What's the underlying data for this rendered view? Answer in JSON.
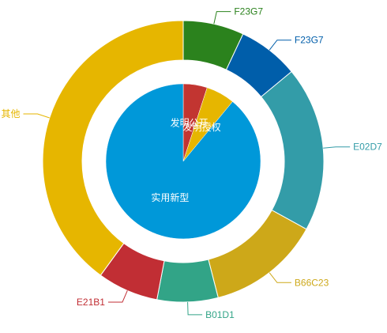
{
  "chart_data": {
    "type": "pie",
    "title": "",
    "inner_pie": {
      "slices": [
        {
          "label": "发明公开",
          "value": 5,
          "color": "#c23531"
        },
        {
          "label": "发明授权",
          "value": 6,
          "color": "#e6b600"
        },
        {
          "label": "实用新型",
          "value": 89,
          "color": "#0098d9"
        }
      ]
    },
    "outer_ring": {
      "slices": [
        {
          "label": "F23G7",
          "value": 7,
          "color": "#2b821d"
        },
        {
          "label": "F23G7",
          "value": 7,
          "color": "#005eaa"
        },
        {
          "label": "E02D7",
          "value": 19,
          "color": "#339ca8"
        },
        {
          "label": "B66C23",
          "value": 13,
          "color": "#cda819"
        },
        {
          "label": "B01D1",
          "value": 7,
          "color": "#32a487"
        },
        {
          "label": "E21B1",
          "value": 7,
          "color": "#c12e34"
        },
        {
          "label": "其他",
          "value": 40,
          "color": "#e6b600"
        }
      ]
    }
  }
}
